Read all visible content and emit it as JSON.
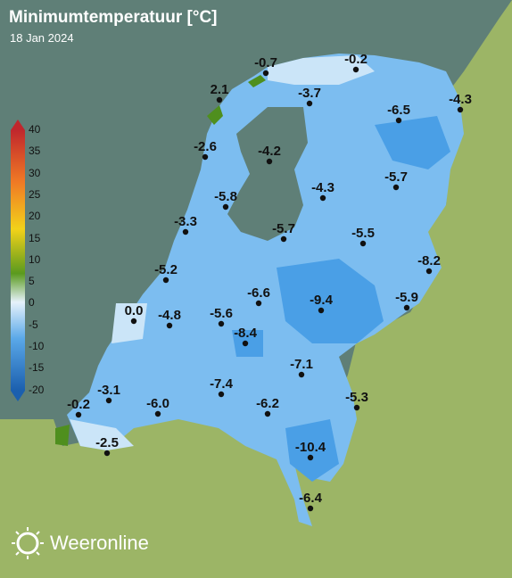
{
  "header": {
    "title": "Minimumtemperatuur [°C]",
    "date": "18 Jan 2024"
  },
  "legend": {
    "ticks": [
      "40",
      "35",
      "30",
      "25",
      "20",
      "15",
      "10",
      "5",
      "0",
      "-5",
      "-10",
      "-15",
      "-20"
    ],
    "colors": [
      "#c0272d",
      "#e8472b",
      "#f07a25",
      "#f5a623",
      "#f2d21a",
      "#c8d42a",
      "#8cb82a",
      "#5a9a1e",
      "#e6f2fb",
      "#a9d1f2",
      "#5aa8e8",
      "#2f86d8",
      "#1b5fae"
    ]
  },
  "stations": [
    {
      "value": "-0.7"
    },
    {
      "value": "-0.2"
    },
    {
      "value": "2.1"
    },
    {
      "value": "-3.7"
    },
    {
      "value": "-4.3"
    },
    {
      "value": "-6.5"
    },
    {
      "value": "-2.6"
    },
    {
      "value": "-4.2"
    },
    {
      "value": "-5.8"
    },
    {
      "value": "-4.3"
    },
    {
      "value": "-5.7"
    },
    {
      "value": "-3.3"
    },
    {
      "value": "-5.7"
    },
    {
      "value": "-5.5"
    },
    {
      "value": "-8.2"
    },
    {
      "value": "-5.2"
    },
    {
      "value": "-6.6"
    },
    {
      "value": "-9.4"
    },
    {
      "value": "-5.9"
    },
    {
      "value": "0.0"
    },
    {
      "value": "-4.8"
    },
    {
      "value": "-5.6"
    },
    {
      "value": "-8.4"
    },
    {
      "value": "-7.1"
    },
    {
      "value": "-7.4"
    },
    {
      "value": "-3.1"
    },
    {
      "value": "-0.2"
    },
    {
      "value": "-6.0"
    },
    {
      "value": "-6.2"
    },
    {
      "value": "-5.3"
    },
    {
      "value": "-2.5"
    },
    {
      "value": "-10.4"
    },
    {
      "value": "-6.4"
    }
  ],
  "brand": {
    "name": "Weeronline",
    "icon": "sun-icon"
  },
  "colors": {
    "sea": "#5f7f77",
    "land": "#9cb566",
    "cold_light": "#cbe5f8",
    "cold_mid": "#7cbdf0",
    "cold_deep": "#3f95e2"
  }
}
